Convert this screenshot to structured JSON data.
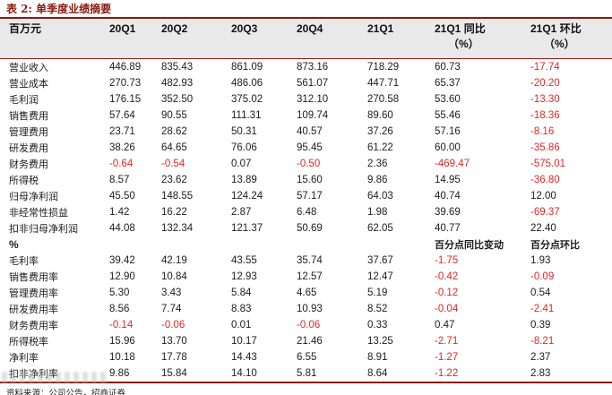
{
  "title": "表 2: 单季度业绩摘要",
  "table": {
    "unit_header": "百万元",
    "columns": [
      "20Q1",
      "20Q2",
      "20Q3",
      "20Q4",
      "21Q1"
    ],
    "yoy_header": {
      "line1": "21Q1 同比",
      "line2": "（%）"
    },
    "qoq_header": {
      "line1": "21Q1 环比",
      "line2": "（%）"
    },
    "rows": [
      {
        "label": "营业收入",
        "values": [
          "446.89",
          "835.43",
          "861.09",
          "873.16",
          "718.29",
          "60.73",
          "-17.74"
        ]
      },
      {
        "label": "营业成本",
        "values": [
          "270.73",
          "482.93",
          "486.06",
          "561.07",
          "447.71",
          "65.37",
          "-20.20"
        ]
      },
      {
        "label": "毛利润",
        "values": [
          "176.15",
          "352.50",
          "375.02",
          "312.10",
          "270.58",
          "53.60",
          "-13.30"
        ]
      },
      {
        "label": "销售费用",
        "values": [
          "57.64",
          "90.55",
          "111.31",
          "109.74",
          "89.60",
          "55.46",
          "-18.36"
        ]
      },
      {
        "label": "管理费用",
        "values": [
          "23.71",
          "28.62",
          "50.31",
          "40.57",
          "37.26",
          "57.16",
          "-8.16"
        ]
      },
      {
        "label": "研发费用",
        "values": [
          "38.26",
          "64.65",
          "76.06",
          "95.45",
          "61.22",
          "60.00",
          "-35.86"
        ]
      },
      {
        "label": "财务费用",
        "values": [
          "-0.64",
          "-0.54",
          "0.07",
          "-0.50",
          "2.36",
          "-469.47",
          "-575.01"
        ]
      },
      {
        "label": "所得税",
        "values": [
          "8.57",
          "23.62",
          "13.89",
          "15.60",
          "9.86",
          "14.95",
          "-36.80"
        ]
      },
      {
        "label": "归母净利润",
        "values": [
          "45.50",
          "148.55",
          "124.24",
          "57.17",
          "64.03",
          "40.74",
          "12.00"
        ]
      },
      {
        "label": "非经常性损益",
        "values": [
          "1.42",
          "16.22",
          "2.87",
          "6.48",
          "1.98",
          "39.69",
          "-69.37"
        ]
      },
      {
        "label": "扣非归母净利润",
        "values": [
          "44.08",
          "132.34",
          "121.37",
          "50.69",
          "62.05",
          "40.77",
          "22.40"
        ]
      },
      {
        "label": "%",
        "bold": true,
        "values": [
          "",
          "",
          "",
          "",
          "",
          "百分点同比变动",
          "百分点环比"
        ]
      },
      {
        "label": "毛利率",
        "values": [
          "39.42",
          "42.19",
          "43.55",
          "35.74",
          "37.67",
          "-1.75",
          "1.93"
        ]
      },
      {
        "label": "销售费用率",
        "values": [
          "12.90",
          "10.84",
          "12.93",
          "12.57",
          "12.47",
          "-0.42",
          "-0.09"
        ]
      },
      {
        "label": "管理费用率",
        "values": [
          "5.30",
          "3.43",
          "5.84",
          "4.65",
          "5.19",
          "-0.12",
          "0.54"
        ]
      },
      {
        "label": "研发费用率",
        "values": [
          "8.56",
          "7.74",
          "8.83",
          "10.93",
          "8.52",
          "-0.04",
          "-2.41"
        ]
      },
      {
        "label": "财务费用率",
        "values": [
          "-0.14",
          "-0.06",
          "0.01",
          "-0.06",
          "0.33",
          "0.47",
          "0.39"
        ]
      },
      {
        "label": "所得税率",
        "values": [
          "15.96",
          "13.70",
          "10.17",
          "21.46",
          "13.25",
          "-2.71",
          "-8.21"
        ]
      },
      {
        "label": "净利率",
        "values": [
          "10.18",
          "17.78",
          "14.43",
          "6.55",
          "8.91",
          "-1.27",
          "2.37"
        ]
      },
      {
        "label": "扣非净利率",
        "values": [
          "9.86",
          "15.84",
          "14.10",
          "5.81",
          "8.64",
          "-1.22",
          "2.83"
        ]
      }
    ]
  },
  "footer": "资料来源：公司公告，招商证券",
  "colors": {
    "accent_maroon": "#8b1a0e",
    "negative_red": "#e02626",
    "header_bg": "#e9e9e9"
  }
}
